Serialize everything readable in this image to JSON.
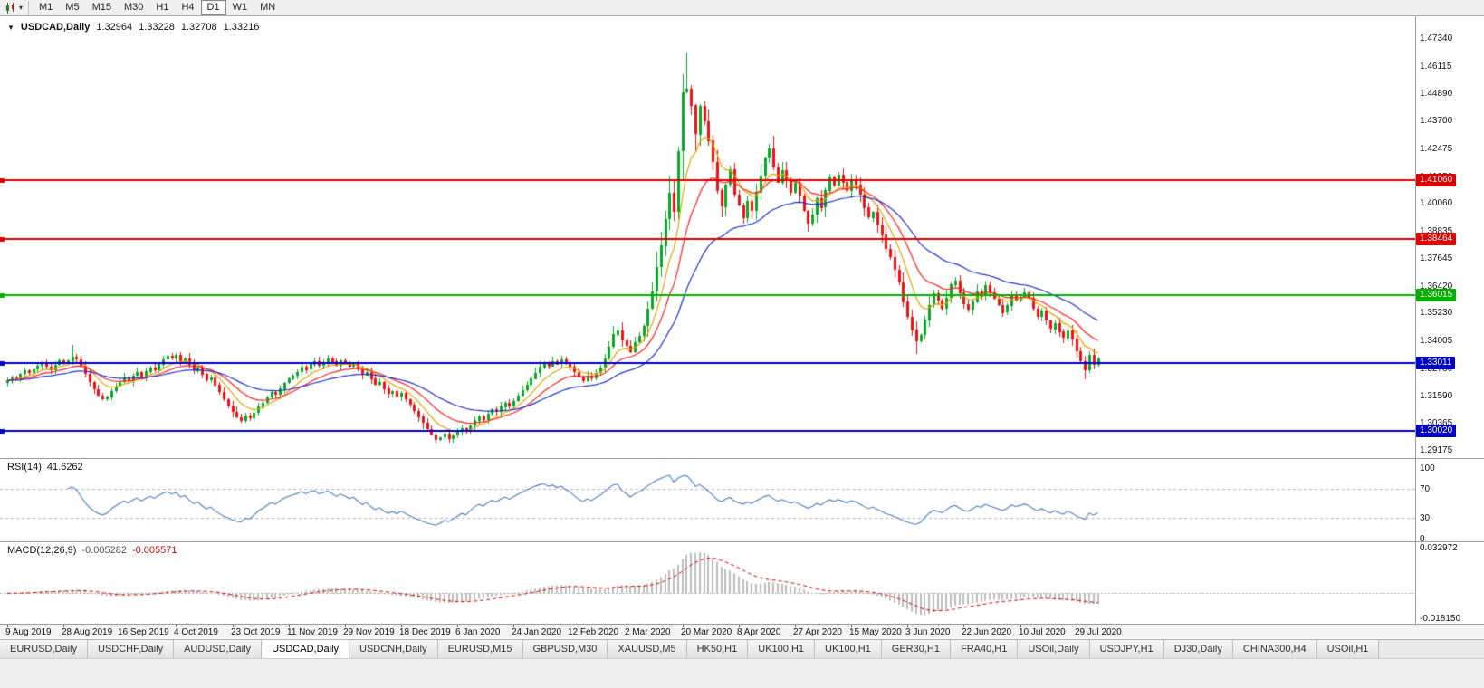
{
  "toolbar": {
    "timeframes": [
      "M1",
      "M5",
      "M15",
      "M30",
      "H1",
      "H4",
      "D1",
      "W1",
      "MN"
    ],
    "active": "D1",
    "dropdown_icon": "▾"
  },
  "header": {
    "marker": "▼",
    "symbol": "USDCAD,Daily",
    "open": "1.32964",
    "high": "1.33228",
    "low": "1.32708",
    "close": "1.33216"
  },
  "chart_data": {
    "type": "candlestick",
    "symbol": "USDCAD",
    "timeframe": "Daily",
    "ohlc_readout": {
      "open": 1.32964,
      "high": 1.33228,
      "low": 1.32708,
      "close": 1.33216
    },
    "ylim": {
      "top": 1.48298,
      "bottom": 1.28816
    },
    "yticks": [
      "1.47340",
      "1.46115",
      "1.44890",
      "1.43700",
      "1.42475",
      "1.41250",
      "1.40060",
      "1.38835",
      "1.37645",
      "1.36420",
      "1.35230",
      "1.34005",
      "1.32780",
      "1.31590",
      "1.30365",
      "1.29175"
    ],
    "x_labels": [
      "9 Aug 2019",
      "28 Aug 2019",
      "16 Sep 2019",
      "4 Oct 2019",
      "23 Oct 2019",
      "11 Nov 2019",
      "29 Nov 2019",
      "18 Dec 2019",
      "6 Jan 2020",
      "24 Jan 2020",
      "12 Feb 2020",
      "2 Mar 2020",
      "20 Mar 2020",
      "8 Apr 2020",
      "27 Apr 2020",
      "15 May 2020",
      "3 Jun 2020",
      "22 Jun 2020",
      "10 Jul 2020",
      "29 Jul 2020"
    ],
    "x_label_interval": 13,
    "up_color": "#0aa828",
    "down_color": "#f01212",
    "render_seed": 20200807,
    "closes": [
      1.3224,
      1.3238,
      1.3232,
      1.3252,
      1.3268,
      1.3258,
      1.3274,
      1.329,
      1.3302,
      1.3286,
      1.327,
      1.3294,
      1.3312,
      1.3298,
      1.3312,
      1.333,
      1.3318,
      1.3288,
      1.3252,
      1.3216,
      1.3184,
      1.3158,
      1.3142,
      1.3152,
      1.3178,
      1.3198,
      1.3218,
      1.3236,
      1.3222,
      1.3246,
      1.3262,
      1.3242,
      1.3264,
      1.3282,
      1.327,
      1.3296,
      1.3318,
      1.3332,
      1.332,
      1.3336,
      1.331,
      1.3322,
      1.3296,
      1.3268,
      1.3282,
      1.3252,
      1.3226,
      1.3238,
      1.3204,
      1.3172,
      1.314,
      1.3114,
      1.3086,
      1.3062,
      1.3048,
      1.307,
      1.3058,
      1.3082,
      1.3108,
      1.3126,
      1.315,
      1.3172,
      1.316,
      1.3188,
      1.3214,
      1.3232,
      1.3246,
      1.3262,
      1.3286,
      1.3272,
      1.3296,
      1.331,
      1.329,
      1.3302,
      1.3322,
      1.3308,
      1.329,
      1.3312,
      1.33,
      1.3286,
      1.3296,
      1.3272,
      1.3248,
      1.3262,
      1.3232,
      1.3206,
      1.3218,
      1.3188,
      1.3164,
      1.3176,
      1.3152,
      1.3168,
      1.3142,
      1.3118,
      1.309,
      1.3064,
      1.3036,
      1.3008,
      1.2984,
      1.2962,
      1.2972,
      1.2988,
      1.2966,
      1.298,
      1.2996,
      1.3012,
      1.2998,
      1.3024,
      1.3048,
      1.3066,
      1.3052,
      1.3078,
      1.3096,
      1.3084,
      1.3108,
      1.3126,
      1.3112,
      1.3134,
      1.3158,
      1.3182,
      1.3206,
      1.3232,
      1.3258,
      1.3284,
      1.3302,
      1.3288,
      1.331,
      1.3296,
      1.3316,
      1.3298,
      1.3286,
      1.3262,
      1.324,
      1.3222,
      1.3246,
      1.3234,
      1.3258,
      1.3282,
      1.332,
      1.3372,
      1.3428,
      1.3446,
      1.3402,
      1.3378,
      1.335,
      1.3394,
      1.3422,
      1.3466,
      1.3542,
      1.3618,
      1.3724,
      1.3818,
      1.3936,
      1.4052,
      1.397,
      1.4236,
      1.4496,
      1.4512,
      1.4438,
      1.431,
      1.4436,
      1.4368,
      1.4282,
      1.4188,
      1.4062,
      1.399,
      1.4088,
      1.4154,
      1.4042,
      1.3996,
      1.3942,
      1.4016,
      1.3972,
      1.4054,
      1.4128,
      1.4208,
      1.4246,
      1.4164,
      1.4098,
      1.4152,
      1.4106,
      1.4052,
      1.4094,
      1.4038,
      1.3972,
      1.3918,
      1.3956,
      1.4028,
      1.3986,
      1.4062,
      1.4124,
      1.4086,
      1.4132,
      1.4098,
      1.406,
      1.4112,
      1.4088,
      1.4044,
      1.3986,
      1.3942,
      1.3968,
      1.3912,
      1.3866,
      1.3802,
      1.3766,
      1.3712,
      1.3658,
      1.3572,
      1.3506,
      1.3448,
      1.3398,
      1.3424,
      1.3492,
      1.3558,
      1.3608,
      1.3576,
      1.3542,
      1.359,
      1.3648,
      1.3666,
      1.3612,
      1.356,
      1.3536,
      1.3572,
      1.3618,
      1.3596,
      1.3644,
      1.3612,
      1.3586,
      1.3558,
      1.3524,
      1.3556,
      1.3602,
      1.3578,
      1.3592,
      1.3614,
      1.3588,
      1.3542,
      1.3506,
      1.3532,
      1.3488,
      1.3452,
      1.3478,
      1.344,
      1.3412,
      1.3446,
      1.3408,
      1.3352,
      1.331,
      1.3272,
      1.3338,
      1.3296,
      1.3322
    ],
    "wick_overrides": {
      "15": {
        "h": 1.3382
      },
      "99": {
        "l": 1.2951
      },
      "157": {
        "h": 1.4669
      },
      "210": {
        "l": 1.334
      },
      "249": {
        "l": 1.323
      }
    },
    "hlines": [
      {
        "price": 1.4106,
        "label": "1.41060",
        "color": "#dd0000",
        "width": 2
      },
      {
        "price": 1.38464,
        "label": "1.38464",
        "color": "#dd0000",
        "width": 2
      },
      {
        "price": 1.36015,
        "label": "1.36015",
        "color": "#00b300",
        "width": 2
      },
      {
        "price": 1.33011,
        "label": "1.33011",
        "color": "#0000cc",
        "width": 2
      },
      {
        "price": 1.3002,
        "label": "1.30020",
        "color": "#0000cc",
        "width": 2
      }
    ],
    "moving_averages": [
      {
        "method": "ema",
        "period": 8,
        "color": "#e0a500"
      },
      {
        "method": "ema",
        "period": 16,
        "color": "#ff2020"
      },
      {
        "method": "ema",
        "period": 34,
        "color": "#2233cc"
      }
    ],
    "indicators": {
      "rsi": {
        "name": "RSI(14)",
        "value": "41.6262",
        "period": 14,
        "ticks": [
          "100",
          "70",
          "30",
          "0"
        ],
        "levels": [
          70,
          30
        ],
        "color": "#4a7ebf"
      },
      "macd": {
        "name": "MACD(12,26,9)",
        "value_main": "-0.005282",
        "value_signal": "-0.005571",
        "params": [
          12,
          26,
          9
        ],
        "max_label": "0.032972",
        "min_label": "-0.018150",
        "ylim": [
          -0.01815,
          0.032972
        ],
        "hist_color": "#bdbdbd",
        "signal_color": "#d40000"
      }
    }
  },
  "tabs": {
    "active_index": 3,
    "items": [
      "EURUSD,Daily",
      "USDCHF,Daily",
      "AUDUSD,Daily",
      "USDCAD,Daily",
      "USDCNH,Daily",
      "EURUSD,M15",
      "GBPUSD,M30",
      "XAUUSD,M5",
      "HK50,H1",
      "UK100,H1",
      "UK100,H1",
      "GER30,H1",
      "FRA40,H1",
      "USOil,Daily",
      "USDJPY,H1",
      "DJ30,Daily",
      "CHINA300,H4",
      "USOil,H1"
    ]
  }
}
